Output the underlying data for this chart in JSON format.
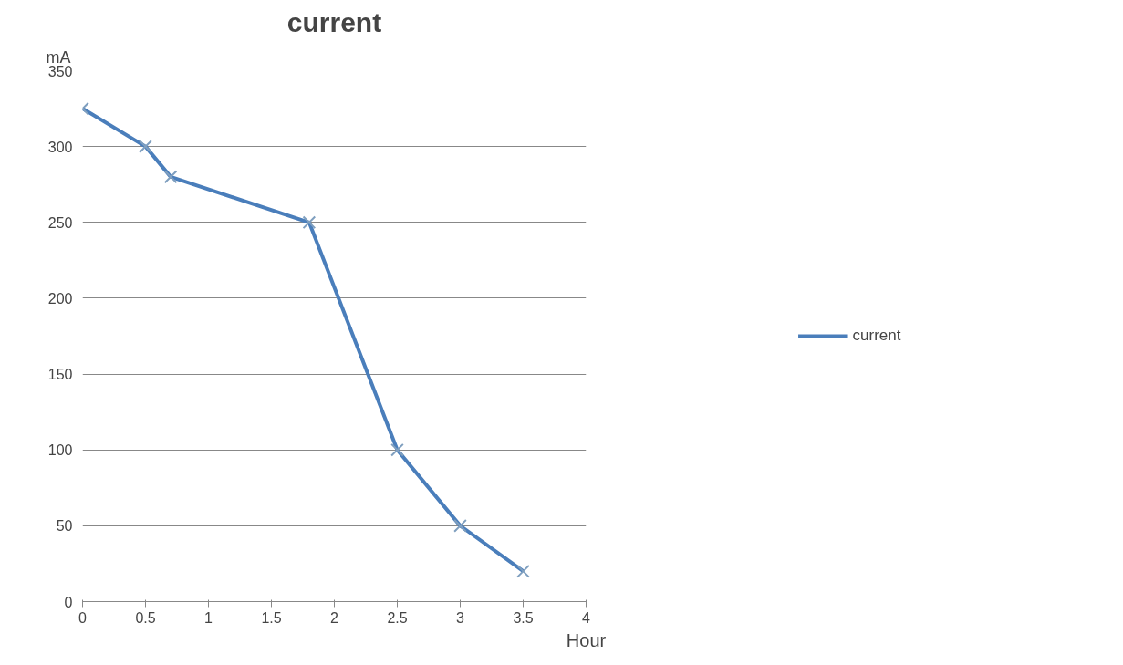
{
  "chart_data": {
    "type": "line",
    "title": "current",
    "xlabel": "Hour",
    "ylabel": "mA",
    "series": [
      {
        "name": "current",
        "color": "#4a7ebb",
        "x": [
          0,
          0.5,
          0.7,
          1.8,
          2.5,
          3,
          3.5
        ],
        "values": [
          325,
          300,
          280,
          250,
          100,
          50,
          20
        ]
      }
    ],
    "xlim": [
      0,
      4
    ],
    "xticks": [
      0,
      0.5,
      1,
      1.5,
      2,
      2.5,
      3,
      3.5,
      4
    ],
    "ylim": [
      0,
      350
    ],
    "yticks": [
      0,
      50,
      100,
      150,
      200,
      250,
      300,
      350
    ],
    "grid": "y",
    "legend": "right",
    "marker": "cross"
  }
}
